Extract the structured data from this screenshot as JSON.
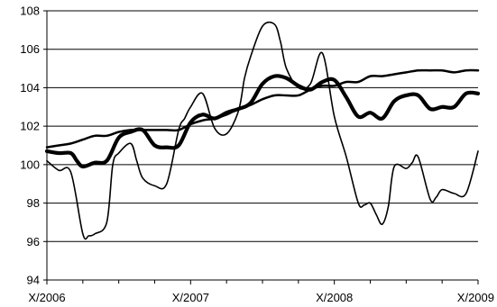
{
  "chart_data": {
    "type": "line",
    "title": "",
    "xlabel": "",
    "ylabel": "",
    "ylim": [
      94,
      108
    ],
    "yticks": [
      94,
      96,
      98,
      100,
      102,
      104,
      106,
      108
    ],
    "xlim": [
      0,
      36
    ],
    "xticks": [
      {
        "x": 0,
        "label": "X/2006"
      },
      {
        "x": 12,
        "label": "X/2007"
      },
      {
        "x": 24,
        "label": "X/2008"
      },
      {
        "x": 36,
        "label": "X/2009"
      }
    ],
    "minor_xticks": [
      3,
      6,
      9,
      15,
      18,
      21,
      27,
      30,
      33
    ],
    "grid": "horizontal",
    "legend": "none",
    "series_color": "#000000",
    "series": [
      {
        "stroke": 1.6,
        "x": [
          0,
          1,
          2,
          3,
          3.5,
          4,
          5,
          5.5,
          6,
          7,
          7.5,
          8,
          9,
          10,
          11,
          11.5,
          12,
          13,
          14,
          15,
          16,
          16.5,
          17,
          18,
          19,
          19.5,
          20,
          21,
          22,
          23,
          24,
          25,
          26,
          26.5,
          27,
          27.5,
          28,
          28.5,
          29,
          30,
          30.5,
          31,
          32,
          32.5,
          33,
          34,
          35,
          36
        ],
        "y": [
          100.2,
          99.7,
          99.6,
          96.4,
          96.3,
          96.4,
          97.0,
          100.0,
          100.6,
          101.1,
          100.2,
          99.3,
          98.9,
          99.0,
          101.8,
          102.4,
          103.0,
          103.7,
          101.9,
          101.6,
          102.8,
          104.5,
          105.6,
          107.2,
          107.3,
          106.4,
          105.0,
          104.0,
          104.2,
          105.8,
          102.5,
          100.4,
          98.0,
          97.9,
          98.0,
          97.4,
          96.9,
          97.8,
          99.9,
          99.8,
          100.1,
          100.4,
          98.2,
          98.3,
          98.7,
          98.5,
          98.5,
          100.7
        ]
      },
      {
        "stroke": 2.5,
        "x": [
          0,
          1,
          2,
          3,
          4,
          5,
          6,
          7,
          8,
          9,
          10,
          11,
          12,
          13,
          14,
          15,
          16,
          17,
          18,
          19,
          20,
          21,
          22,
          23,
          24,
          25,
          26,
          27,
          28,
          29,
          30,
          31,
          32,
          33,
          34,
          35,
          36
        ],
        "y": [
          100.9,
          101.0,
          101.1,
          101.3,
          101.5,
          101.5,
          101.7,
          101.8,
          101.8,
          101.8,
          101.8,
          101.8,
          102.1,
          102.3,
          102.4,
          102.6,
          102.9,
          103.1,
          103.4,
          103.6,
          103.6,
          103.6,
          103.9,
          104.1,
          104.1,
          104.3,
          104.3,
          104.6,
          104.6,
          104.7,
          104.8,
          104.9,
          104.9,
          104.9,
          104.8,
          104.9,
          104.9
        ]
      },
      {
        "stroke": 4.2,
        "x": [
          0,
          1,
          2,
          2.5,
          3,
          4,
          5,
          6,
          7,
          8,
          9,
          10,
          11,
          12,
          13,
          14,
          15,
          16,
          17,
          18,
          19,
          20,
          21,
          22,
          23,
          24,
          25,
          26,
          27,
          28,
          29,
          30,
          31,
          32,
          33,
          34,
          35,
          36
        ],
        "y": [
          100.7,
          100.6,
          100.6,
          100.2,
          99.9,
          100.1,
          100.2,
          101.4,
          101.7,
          101.8,
          101.0,
          100.9,
          101.0,
          102.2,
          102.6,
          102.4,
          102.7,
          102.9,
          103.2,
          104.2,
          104.6,
          104.5,
          104.1,
          103.9,
          104.3,
          104.4,
          103.5,
          102.5,
          102.7,
          102.4,
          103.3,
          103.6,
          103.6,
          102.9,
          103.0,
          103.0,
          103.7,
          103.7
        ]
      }
    ]
  }
}
